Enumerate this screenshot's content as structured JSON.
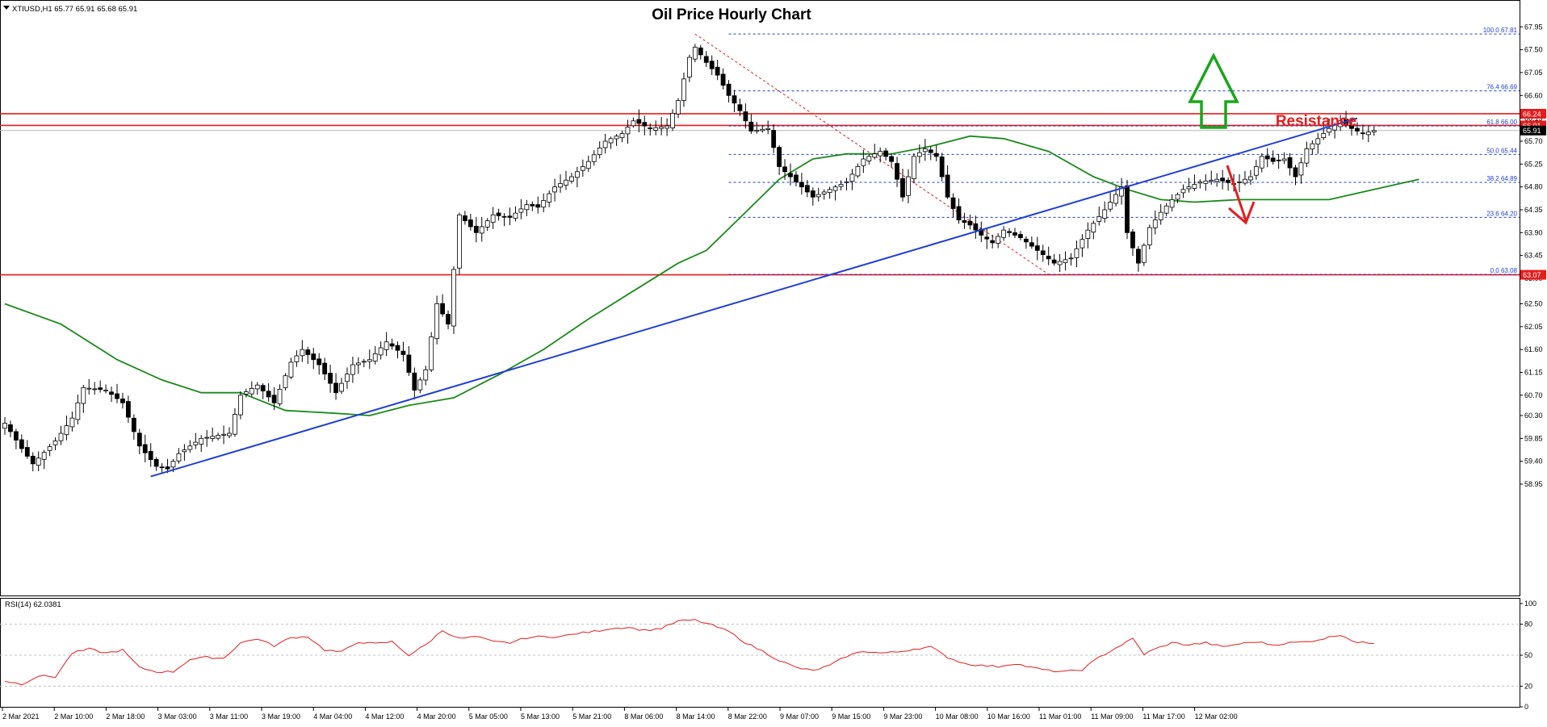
{
  "symbol_header": "XTIUSD,H1  65.77 65.91 65.68 65.91",
  "title": "Oil Price Hourly Chart",
  "resistance_label": "Resistance",
  "rsi_header": "RSI(14) 62.0381",
  "colors": {
    "bull_candle": "#ffffff",
    "bear_candle": "#000000",
    "moving_average": "#1a8a1a",
    "trend_line": "#1f3fd6",
    "horizontal_lines": "#e51c1c",
    "fib_lines": "#1f3fd6",
    "retracement_line": "#e51c1c",
    "rsi": "#e51c1c",
    "up_arrow": "#1aa51a",
    "down_arrow": "#e51c1c"
  },
  "chart_data": {
    "type": "candlestick",
    "title": "Oil Price Hourly Chart",
    "symbol": "XTIUSD,H1",
    "ylim": [
      58.95,
      68.05
    ],
    "y_ticks": [
      67.95,
      67.5,
      67.05,
      66.6,
      66.15,
      65.7,
      65.25,
      64.8,
      64.35,
      63.9,
      63.45,
      63.0,
      62.5,
      62.05,
      61.6,
      61.15,
      60.7,
      60.3,
      59.85,
      59.4,
      58.95
    ],
    "x_ticks": [
      "2 Mar 2021",
      "2 Mar 10:00",
      "2 Mar 18:00",
      "3 Mar 03:00",
      "3 Mar 11:00",
      "3 Mar 19:00",
      "4 Mar 04:00",
      "4 Mar 12:00",
      "4 Mar 20:00",
      "5 Mar 05:00",
      "5 Mar 13:00",
      "5 Mar 21:00",
      "8 Mar 06:00",
      "8 Mar 14:00",
      "8 Mar 22:00",
      "9 Mar 07:00",
      "9 Mar 15:00",
      "9 Mar 23:00",
      "10 Mar 08:00",
      "10 Mar 16:00",
      "11 Mar 01:00",
      "11 Mar 09:00",
      "11 Mar 17:00",
      "12 Mar 02:00"
    ],
    "close_keypoints": [
      [
        0,
        60.15
      ],
      [
        3,
        59.65
      ],
      [
        5,
        59.35
      ],
      [
        9,
        59.8
      ],
      [
        12,
        60.25
      ],
      [
        14,
        60.85
      ],
      [
        18,
        60.8
      ],
      [
        21,
        60.55
      ],
      [
        24,
        59.7
      ],
      [
        27,
        59.3
      ],
      [
        29,
        59.25
      ],
      [
        31,
        59.55
      ],
      [
        35,
        59.85
      ],
      [
        40,
        59.95
      ],
      [
        42,
        60.7
      ],
      [
        45,
        60.9
      ],
      [
        48,
        60.55
      ],
      [
        51,
        61.35
      ],
      [
        53,
        61.6
      ],
      [
        56,
        61.3
      ],
      [
        59,
        60.75
      ],
      [
        62,
        61.3
      ],
      [
        65,
        61.4
      ],
      [
        68,
        61.75
      ],
      [
        71,
        61.5
      ],
      [
        73,
        60.8
      ],
      [
        75,
        61.2
      ],
      [
        77,
        62.5
      ],
      [
        79,
        62.1
      ],
      [
        81,
        64.25
      ],
      [
        84,
        63.9
      ],
      [
        87,
        64.25
      ],
      [
        90,
        64.2
      ],
      [
        93,
        64.45
      ],
      [
        95,
        64.4
      ],
      [
        98,
        64.8
      ],
      [
        101,
        65.0
      ],
      [
        104,
        65.3
      ],
      [
        107,
        65.7
      ],
      [
        110,
        65.85
      ],
      [
        112,
        66.1
      ],
      [
        115,
        65.95
      ],
      [
        118,
        66.0
      ],
      [
        120,
        66.5
      ],
      [
        122,
        67.35
      ],
      [
        123,
        67.55
      ],
      [
        125,
        67.25
      ],
      [
        127,
        67.0
      ],
      [
        129,
        66.6
      ],
      [
        131,
        66.3
      ],
      [
        133,
        65.9
      ],
      [
        136,
        65.95
      ],
      [
        138,
        65.2
      ],
      [
        141,
        64.9
      ],
      [
        144,
        64.6
      ],
      [
        147,
        64.75
      ],
      [
        150,
        64.9
      ],
      [
        153,
        65.35
      ],
      [
        156,
        65.5
      ],
      [
        158,
        65.3
      ],
      [
        160,
        64.6
      ],
      [
        162,
        65.4
      ],
      [
        164,
        65.55
      ],
      [
        166,
        65.4
      ],
      [
        168,
        64.6
      ],
      [
        170,
        64.15
      ],
      [
        172,
        64.05
      ],
      [
        174,
        63.85
      ],
      [
        176,
        63.7
      ],
      [
        178,
        63.95
      ],
      [
        181,
        63.8
      ],
      [
        184,
        63.55
      ],
      [
        187,
        63.3
      ],
      [
        190,
        63.4
      ],
      [
        193,
        63.95
      ],
      [
        196,
        64.35
      ],
      [
        199,
        64.8
      ],
      [
        200,
        63.9
      ],
      [
        202,
        63.3
      ],
      [
        204,
        64.0
      ],
      [
        206,
        64.3
      ],
      [
        208,
        64.55
      ],
      [
        210,
        64.75
      ],
      [
        213,
        64.9
      ],
      [
        216,
        64.95
      ],
      [
        219,
        64.85
      ],
      [
        222,
        65.0
      ],
      [
        224,
        65.4
      ],
      [
        226,
        65.3
      ],
      [
        228,
        65.35
      ],
      [
        230,
        65.0
      ],
      [
        232,
        65.55
      ],
      [
        234,
        65.75
      ],
      [
        236,
        65.95
      ],
      [
        238,
        66.1
      ],
      [
        240,
        65.95
      ],
      [
        242,
        65.85
      ],
      [
        244,
        65.91
      ]
    ],
    "moving_average_keypoints": [
      [
        0,
        62.5
      ],
      [
        10,
        62.1
      ],
      [
        20,
        61.4
      ],
      [
        28,
        61.0
      ],
      [
        35,
        60.75
      ],
      [
        42,
        60.75
      ],
      [
        50,
        60.4
      ],
      [
        58,
        60.35
      ],
      [
        65,
        60.3
      ],
      [
        72,
        60.5
      ],
      [
        80,
        60.65
      ],
      [
        88,
        61.1
      ],
      [
        96,
        61.6
      ],
      [
        104,
        62.2
      ],
      [
        112,
        62.75
      ],
      [
        120,
        63.3
      ],
      [
        125,
        63.55
      ],
      [
        132,
        64.3
      ],
      [
        138,
        64.95
      ],
      [
        144,
        65.35
      ],
      [
        150,
        65.45
      ],
      [
        158,
        65.45
      ],
      [
        165,
        65.6
      ],
      [
        172,
        65.8
      ],
      [
        178,
        65.75
      ],
      [
        186,
        65.5
      ],
      [
        194,
        65.0
      ],
      [
        200,
        64.75
      ],
      [
        206,
        64.55
      ],
      [
        212,
        64.5
      ],
      [
        220,
        64.55
      ],
      [
        228,
        64.55
      ],
      [
        236,
        64.55
      ],
      [
        244,
        64.75
      ],
      [
        252,
        64.95
      ]
    ],
    "rsi": {
      "name": "RSI(14)",
      "ylim": [
        0,
        100
      ],
      "y_ticks": [
        100,
        80,
        50,
        20,
        0
      ],
      "levels": [
        80,
        50,
        20
      ],
      "keypoints": [
        [
          0,
          25
        ],
        [
          3,
          22
        ],
        [
          6,
          30
        ],
        [
          9,
          29
        ],
        [
          12,
          52
        ],
        [
          15,
          56
        ],
        [
          18,
          52
        ],
        [
          21,
          55
        ],
        [
          24,
          38
        ],
        [
          27,
          34
        ],
        [
          30,
          34
        ],
        [
          33,
          46
        ],
        [
          36,
          48
        ],
        [
          39,
          47
        ],
        [
          42,
          62
        ],
        [
          45,
          66
        ],
        [
          48,
          59
        ],
        [
          51,
          67
        ],
        [
          54,
          68
        ],
        [
          57,
          55
        ],
        [
          60,
          53
        ],
        [
          63,
          63
        ],
        [
          66,
          61
        ],
        [
          69,
          63
        ],
        [
          72,
          50
        ],
        [
          75,
          60
        ],
        [
          78,
          74
        ],
        [
          81,
          66
        ],
        [
          84,
          68
        ],
        [
          87,
          63
        ],
        [
          90,
          62
        ],
        [
          93,
          67
        ],
        [
          96,
          68
        ],
        [
          99,
          68
        ],
        [
          102,
          71
        ],
        [
          105,
          73
        ],
        [
          108,
          76
        ],
        [
          111,
          77
        ],
        [
          114,
          74
        ],
        [
          117,
          76
        ],
        [
          120,
          83
        ],
        [
          123,
          84
        ],
        [
          126,
          79
        ],
        [
          129,
          73
        ],
        [
          132,
          62
        ],
        [
          135,
          54
        ],
        [
          138,
          45
        ],
        [
          141,
          38
        ],
        [
          144,
          35
        ],
        [
          147,
          40
        ],
        [
          150,
          49
        ],
        [
          153,
          54
        ],
        [
          156,
          52
        ],
        [
          159,
          53
        ],
        [
          162,
          56
        ],
        [
          165,
          58
        ],
        [
          168,
          48
        ],
        [
          171,
          42
        ],
        [
          174,
          40
        ],
        [
          177,
          39
        ],
        [
          180,
          42
        ],
        [
          183,
          38
        ],
        [
          186,
          35
        ],
        [
          189,
          34
        ],
        [
          192,
          36
        ],
        [
          195,
          48
        ],
        [
          198,
          57
        ],
        [
          201,
          66
        ],
        [
          203,
          51
        ],
        [
          205,
          56
        ],
        [
          208,
          62
        ],
        [
          211,
          60
        ],
        [
          214,
          62
        ],
        [
          217,
          58
        ],
        [
          220,
          61
        ],
        [
          223,
          63
        ],
        [
          226,
          60
        ],
        [
          229,
          62
        ],
        [
          232,
          63
        ],
        [
          235,
          66
        ],
        [
          238,
          70
        ],
        [
          241,
          62
        ],
        [
          244,
          62
        ]
      ]
    },
    "horizontal_levels": [
      {
        "value": 66.24,
        "label": "66.24"
      },
      {
        "value": 66.01,
        "label": "66.01"
      },
      {
        "value": 63.07,
        "label": "63.07"
      }
    ],
    "current_price": {
      "value": 65.91,
      "label": "65.91"
    },
    "fibonacci": [
      {
        "level": "100.0",
        "value": 67.81,
        "label": "100.0 67.81"
      },
      {
        "level": "76.4",
        "value": 66.69,
        "label": "76.4 66.69"
      },
      {
        "level": "61.8",
        "value": 66.0,
        "label": "61.8 66.00"
      },
      {
        "level": "50.0",
        "value": 65.44,
        "label": "50.0 65.44"
      },
      {
        "level": "38.2",
        "value": 64.89,
        "label": "38.2 64.89"
      },
      {
        "level": "23.6",
        "value": 64.2,
        "label": "23.6 64.20"
      },
      {
        "level": "0.0",
        "value": 63.08,
        "label": "0.0 63.08"
      }
    ],
    "fib_swing": {
      "from": [
        123,
        67.81
      ],
      "to": [
        186,
        63.08
      ]
    },
    "trend_line": {
      "from": [
        26,
        59.1
      ],
      "to": [
        241,
        66.15
      ]
    },
    "grid": false,
    "legend": "none"
  }
}
